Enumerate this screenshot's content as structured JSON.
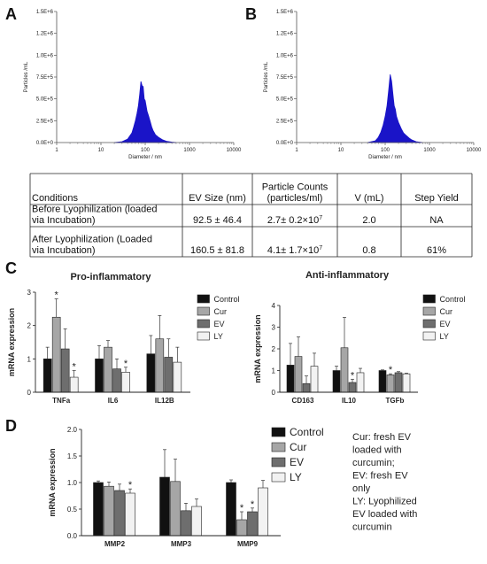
{
  "panels": {
    "A": "A",
    "B": "B",
    "C": "C",
    "D": "D"
  },
  "chart_data": [
    {
      "id": "A",
      "type": "area",
      "xlabel": "Diameter / nm",
      "ylabel": "Particles /mL",
      "xscale": "log",
      "xlim": [
        1,
        10000
      ],
      "xticks": [
        "1",
        "10",
        "100",
        "1000",
        "10000"
      ],
      "ylim": [
        0,
        1500000
      ],
      "yticks": [
        "0.0E+0",
        "2.5E+5",
        "5.0E+5",
        "7.5E+5",
        "1.0E+6",
        "1.2E+6",
        "1.5E+6"
      ],
      "color": "#1a14c8",
      "x": [
        20,
        30,
        40,
        50,
        55,
        60,
        65,
        70,
        75,
        80,
        85,
        90,
        95,
        100,
        110,
        120,
        130,
        140,
        150,
        170,
        200,
        250,
        300,
        400,
        500
      ],
      "y": [
        0,
        10000,
        40000,
        110000,
        180000,
        250000,
        330000,
        420000,
        550000,
        700000,
        650000,
        640000,
        500000,
        480000,
        360000,
        300000,
        240000,
        180000,
        140000,
        90000,
        60000,
        30000,
        15000,
        5000,
        0
      ]
    },
    {
      "id": "B",
      "type": "area",
      "xlabel": "Diameter / nm",
      "ylabel": "Particles /mL",
      "xscale": "log",
      "xlim": [
        1,
        10000
      ],
      "xticks": [
        "1",
        "10",
        "100",
        "1000",
        "10000"
      ],
      "ylim": [
        0,
        1500000
      ],
      "yticks": [
        "0.0E+0",
        "2.5E+5",
        "5.0E+5",
        "7.5E+5",
        "1.0E+6",
        "1.2E+6",
        "1.5E+6"
      ],
      "color": "#1a14c8",
      "x": [
        40,
        60,
        70,
        80,
        90,
        100,
        110,
        120,
        130,
        140,
        150,
        160,
        170,
        180,
        200,
        230,
        260,
        300,
        350,
        400,
        500,
        700
      ],
      "y": [
        0,
        20000,
        60000,
        120000,
        200000,
        300000,
        420000,
        600000,
        780000,
        700000,
        550000,
        420000,
        380000,
        300000,
        230000,
        160000,
        110000,
        80000,
        50000,
        30000,
        10000,
        0
      ]
    },
    {
      "id": "C-pro",
      "type": "bar",
      "title": "Pro-inflammatory",
      "ylabel": "mRNA expression",
      "categories": [
        "TNFa",
        "IL6",
        "IL12B"
      ],
      "ylim": [
        0,
        3
      ],
      "yticks": [
        "0",
        "1",
        "2",
        "3"
      ],
      "series": [
        {
          "name": "Control",
          "values": [
            1.0,
            1.0,
            1.15
          ],
          "err": [
            0.35,
            0.4,
            0.55
          ],
          "color": "#111111",
          "stars": [
            false,
            false,
            false
          ]
        },
        {
          "name": "Cur",
          "values": [
            2.25,
            1.35,
            1.6
          ],
          "err": [
            0.55,
            0.2,
            0.7
          ],
          "color": "#a6a6a6",
          "stars": [
            true,
            false,
            false
          ]
        },
        {
          "name": "EV",
          "values": [
            1.3,
            0.7,
            1.05
          ],
          "err": [
            0.6,
            0.3,
            0.55
          ],
          "color": "#6e6e6e",
          "stars": [
            false,
            false,
            false
          ]
        },
        {
          "name": "LY",
          "values": [
            0.45,
            0.6,
            0.9
          ],
          "err": [
            0.2,
            0.15,
            0.45
          ],
          "color": "#f2f2f2",
          "stars": [
            true,
            true,
            false
          ]
        }
      ]
    },
    {
      "id": "C-anti",
      "type": "bar",
      "title": "Anti-inflammatory",
      "ylabel": "mRNA expression",
      "categories": [
        "CD163",
        "IL10",
        "TGFb"
      ],
      "ylim": [
        0,
        4
      ],
      "yticks": [
        "0",
        "1",
        "2",
        "3",
        "4"
      ],
      "series": [
        {
          "name": "Control",
          "values": [
            1.25,
            1.0,
            1.0
          ],
          "err": [
            1.0,
            0.2,
            0.03
          ],
          "color": "#111111",
          "stars": [
            false,
            false,
            false
          ]
        },
        {
          "name": "Cur",
          "values": [
            1.65,
            2.05,
            0.8
          ],
          "err": [
            0.9,
            1.4,
            0.05
          ],
          "color": "#a6a6a6",
          "stars": [
            false,
            false,
            true
          ]
        },
        {
          "name": "EV",
          "values": [
            0.4,
            0.45,
            0.9
          ],
          "err": [
            0.35,
            0.15,
            0.05
          ],
          "color": "#6e6e6e",
          "stars": [
            false,
            true,
            false
          ]
        },
        {
          "name": "LY",
          "values": [
            1.2,
            0.9,
            0.85
          ],
          "err": [
            0.6,
            0.2,
            0.03
          ],
          "color": "#f2f2f2",
          "stars": [
            false,
            false,
            false
          ]
        }
      ]
    },
    {
      "id": "D",
      "type": "bar",
      "ylabel": "mRNA expression",
      "categories": [
        "MMP2",
        "MMP3",
        "MMP9"
      ],
      "ylim": [
        0,
        2.0
      ],
      "yticks": [
        "0.0",
        "0.5",
        "1.0",
        "1.5",
        "2.0"
      ],
      "series": [
        {
          "name": "Control",
          "values": [
            1.0,
            1.1,
            1.0
          ],
          "err": [
            0.03,
            0.52,
            0.05
          ],
          "color": "#111111",
          "stars": [
            false,
            false,
            false
          ]
        },
        {
          "name": "Cur",
          "values": [
            0.93,
            1.02,
            0.3
          ],
          "err": [
            0.08,
            0.42,
            0.15
          ],
          "color": "#a6a6a6",
          "stars": [
            false,
            false,
            true
          ]
        },
        {
          "name": "EV",
          "values": [
            0.85,
            0.47,
            0.45
          ],
          "err": [
            0.12,
            0.14,
            0.07
          ],
          "color": "#6e6e6e",
          "stars": [
            false,
            false,
            true
          ]
        },
        {
          "name": "LY",
          "values": [
            0.8,
            0.55,
            0.9
          ],
          "err": [
            0.08,
            0.14,
            0.14
          ],
          "color": "#f2f2f2",
          "stars": [
            true,
            false,
            false
          ]
        }
      ]
    }
  ],
  "table": {
    "header": [
      "Conditions",
      "EV Size (nm)",
      "Particle Counts\n(particles/ml)",
      "V (mL)",
      "Step Yield"
    ],
    "rows": [
      [
        "Before Lyophilization (loaded\nvia Incubation)",
        "92.5 ± 46.4",
        "2.7± 0.2×10^7",
        "2.0",
        "NA"
      ],
      [
        "After Lyophilization (Loaded\nvia Incubation)",
        "160.5 ± 81.8",
        "4.1± 1.7×10^7",
        "0.8",
        "61%"
      ]
    ]
  },
  "note": [
    "Cur: fresh EV",
    "loaded with",
    "curcumin;",
    "EV: fresh EV",
    "only",
    "LY: Lyophilized",
    "EV loaded with",
    "curcumin"
  ]
}
